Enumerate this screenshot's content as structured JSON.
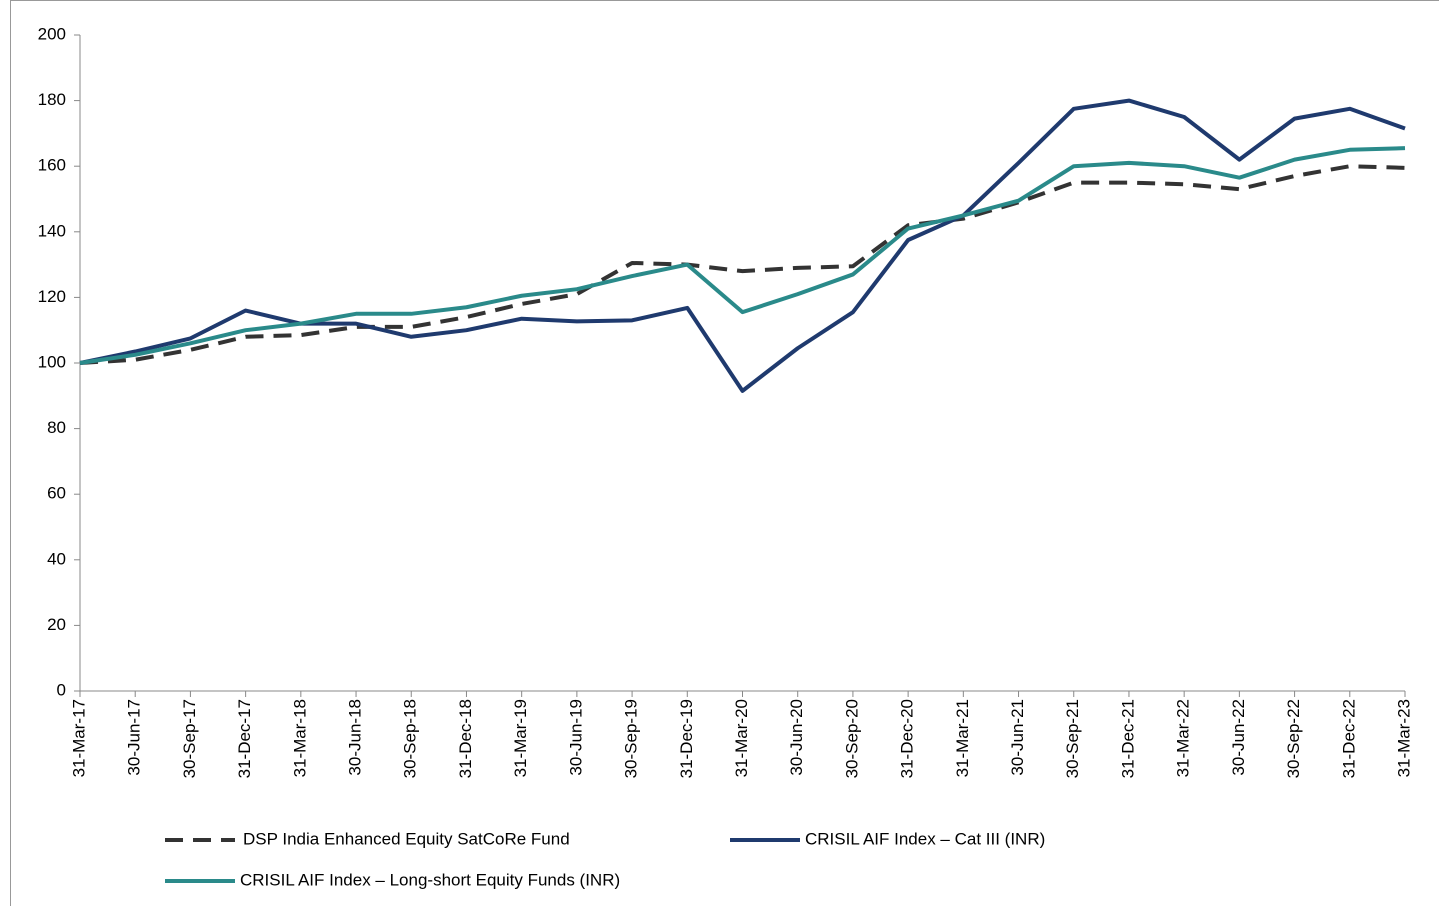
{
  "chart_data": {
    "type": "line",
    "categories": [
      "31-Mar-17",
      "30-Jun-17",
      "30-Sep-17",
      "31-Dec-17",
      "31-Mar-18",
      "30-Jun-18",
      "30-Sep-18",
      "31-Dec-18",
      "31-Mar-19",
      "30-Jun-19",
      "30-Sep-19",
      "31-Dec-19",
      "31-Mar-20",
      "30-Jun-20",
      "30-Sep-20",
      "31-Dec-20",
      "31-Mar-21",
      "30-Jun-21",
      "30-Sep-21",
      "31-Dec-21",
      "31-Mar-22",
      "30-Jun-22",
      "30-Sep-22",
      "31-Dec-22",
      "31-Mar-23"
    ],
    "series": [
      {
        "name": "DSP India Enhanced Equity SatCoRe Fund",
        "color": "#333333",
        "dashed": true,
        "values": [
          100,
          101,
          104,
          108,
          108.5,
          111,
          111,
          114,
          118,
          121,
          130.5,
          130,
          128,
          129,
          129.5,
          142,
          144,
          149,
          155,
          155,
          154.5,
          153,
          157,
          160,
          159.5
        ]
      },
      {
        "name": "CRISIL AIF Index – Cat III (INR)",
        "color": "#1f3a6e",
        "dashed": false,
        "values": [
          100,
          103.5,
          107.5,
          116,
          112,
          112,
          108,
          110,
          113.5,
          112.7,
          113,
          116.8,
          91.5,
          104.5,
          115.5,
          137.5,
          145,
          161,
          177.5,
          180,
          175,
          162,
          174.5,
          177.5,
          171.5
        ]
      },
      {
        "name": "CRISIL AIF Index – Long-short Equity Funds (INR)",
        "color": "#2a8a8a",
        "dashed": false,
        "values": [
          100,
          102.5,
          106,
          110,
          112,
          115,
          115,
          117,
          120.5,
          122.5,
          126.5,
          130,
          115.5,
          121,
          127,
          141,
          145,
          149.5,
          160,
          161,
          160,
          156.5,
          162,
          165,
          165.5
        ]
      }
    ],
    "ylim": [
      0,
      200
    ],
    "yticks": [
      0,
      20,
      40,
      60,
      80,
      100,
      120,
      140,
      160,
      180,
      200
    ]
  }
}
